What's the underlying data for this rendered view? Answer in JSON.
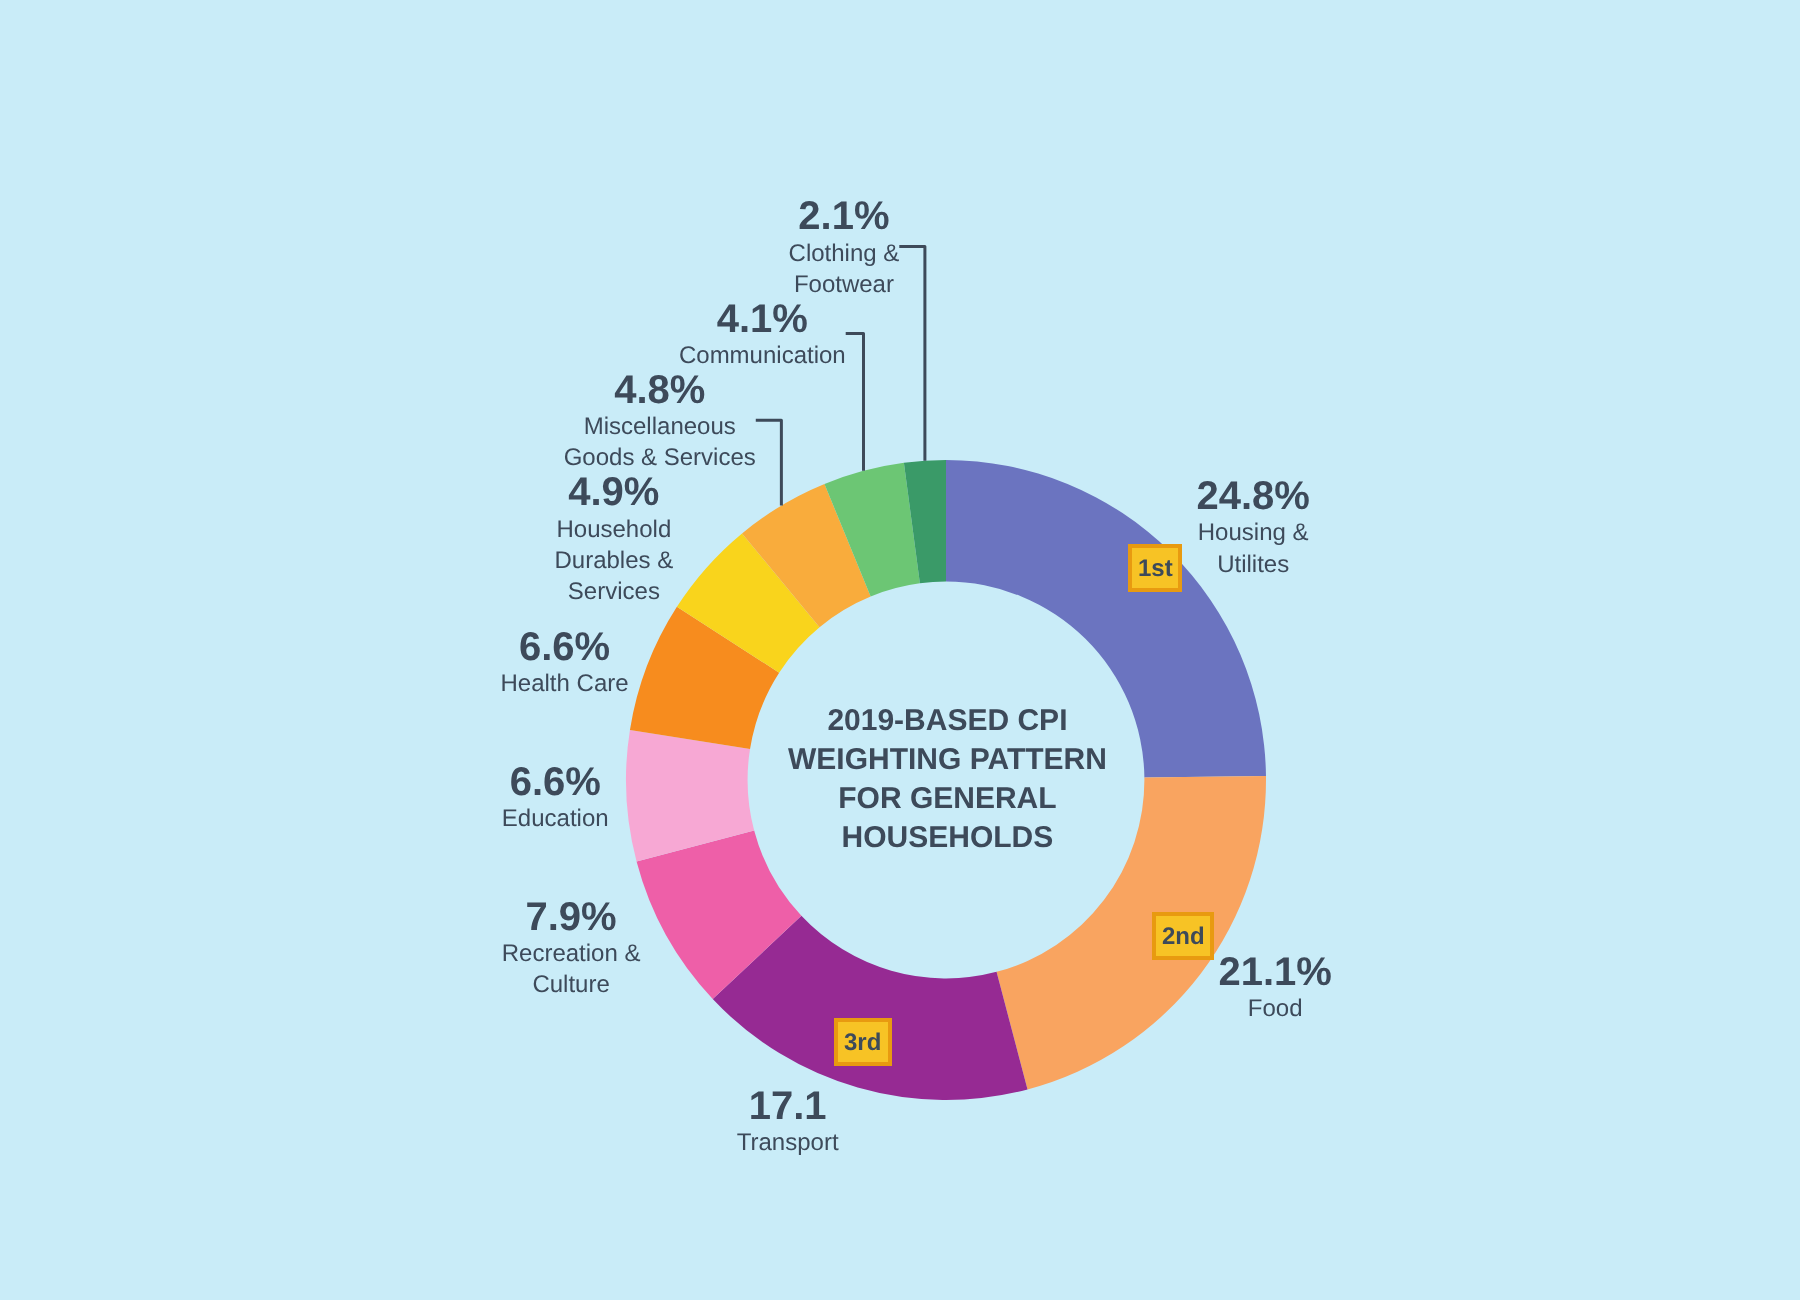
{
  "chart_data": {
    "type": "donut",
    "title": "2019-BASED CPI WEIGHTING PATTERN FOR GENERAL HOUSEHOLDS",
    "categories": [
      "Housing & Utilites",
      "Food",
      "Transport",
      "Recreation & Culture",
      "Education",
      "Health Care",
      "Household Durables & Services",
      "Miscellaneous Goods & Services",
      "Communication",
      "Clothing & Footwear"
    ],
    "values": [
      24.8,
      21.1,
      17.1,
      7.9,
      6.6,
      6.6,
      4.9,
      4.8,
      4.1,
      2.1
    ],
    "colors": [
      "#6b74c0",
      "#f9a460",
      "#962a93",
      "#ee5fa8",
      "#f7a8d4",
      "#f78c1e",
      "#f9d41c",
      "#f9ac3c",
      "#6cc674",
      "#3a9a68"
    ],
    "value_labels": [
      "24.8%",
      "21.1%",
      "17.1",
      "7.9%",
      "6.6%",
      "6.6%",
      "4.9%",
      "4.8%",
      "4.1%",
      "2.1%"
    ],
    "annotations": [
      {
        "text": "1st",
        "x": "Housing & Utilites"
      },
      {
        "text": "2nd",
        "x": "Food"
      },
      {
        "text": "3rd",
        "x": "Transport"
      }
    ],
    "legend": false
  }
}
